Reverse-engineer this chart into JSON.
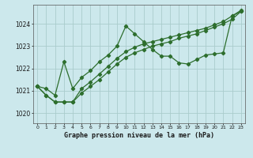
{
  "title": "Graphe pression niveau de la mer (hPa)",
  "background_color": "#cce8ec",
  "grid_color": "#aacccc",
  "line_color": "#2d6e2d",
  "xlim": [
    -0.5,
    23.5
  ],
  "ylim": [
    1019.55,
    1024.85
  ],
  "yticks": [
    1020,
    1021,
    1022,
    1023,
    1024
  ],
  "xticks": [
    0,
    1,
    2,
    3,
    4,
    5,
    6,
    7,
    8,
    9,
    10,
    11,
    12,
    13,
    14,
    15,
    16,
    17,
    18,
    19,
    20,
    21,
    22,
    23
  ],
  "series": [
    {
      "x": [
        0,
        1,
        2,
        3,
        4,
        5,
        6,
        7,
        8,
        9,
        10,
        11,
        12,
        13,
        14,
        15,
        16,
        17,
        18,
        19,
        20,
        21,
        22,
        23
      ],
      "y": [
        1021.2,
        1021.1,
        1020.8,
        1022.3,
        1021.1,
        1021.6,
        1021.9,
        1022.3,
        1022.6,
        1023.0,
        1023.9,
        1023.55,
        1023.2,
        1022.85,
        1022.55,
        1022.55,
        1022.25,
        1022.2,
        1022.4,
        1022.6,
        1022.65,
        1022.7,
        1024.35,
        1024.55
      ]
    },
    {
      "x": [
        0,
        1,
        2,
        3,
        4,
        5,
        6,
        7,
        8,
        9,
        10,
        11,
        12,
        13,
        14,
        15,
        16,
        17,
        18,
        19,
        20,
        21,
        22,
        23
      ],
      "y": [
        1021.2,
        1020.8,
        1020.5,
        1020.5,
        1020.5,
        1020.9,
        1021.2,
        1021.5,
        1021.85,
        1022.2,
        1022.5,
        1022.7,
        1022.85,
        1023.0,
        1023.1,
        1023.2,
        1023.35,
        1023.45,
        1023.55,
        1023.7,
        1023.85,
        1024.0,
        1024.2,
        1024.55
      ]
    },
    {
      "x": [
        0,
        1,
        2,
        3,
        4,
        5,
        6,
        7,
        8,
        9,
        10,
        11,
        12,
        13,
        14,
        15,
        16,
        17,
        18,
        19,
        20,
        21,
        22,
        23
      ],
      "y": [
        1021.2,
        1020.8,
        1020.5,
        1020.5,
        1020.5,
        1021.1,
        1021.4,
        1021.75,
        1022.1,
        1022.45,
        1022.75,
        1022.95,
        1023.1,
        1023.2,
        1023.3,
        1023.4,
        1023.5,
        1023.6,
        1023.7,
        1023.8,
        1023.95,
        1024.1,
        1024.35,
        1024.6
      ]
    }
  ]
}
